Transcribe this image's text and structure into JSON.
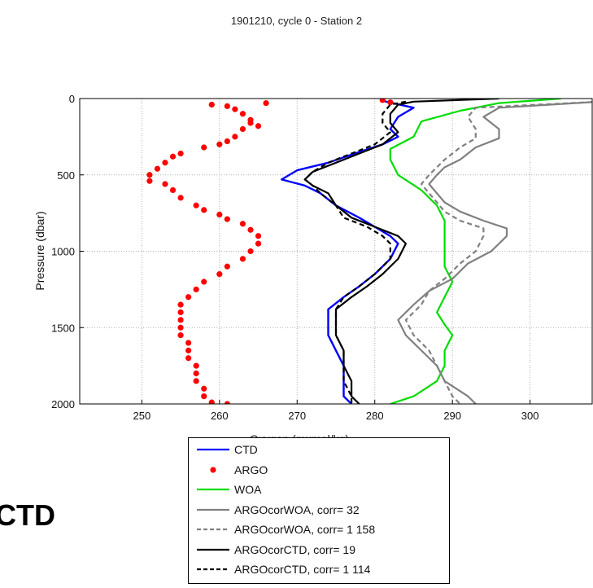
{
  "chart_data": {
    "type": "line",
    "title": "1901210, cycle 0 - Station 2",
    "xlabel": "Oxygen (mumol/kg)",
    "ylabel": "Pressure (dbar)",
    "xlim": [
      242,
      308
    ],
    "ylim": [
      2000,
      0
    ],
    "y_reversed": true,
    "xticks": [
      250,
      260,
      270,
      280,
      290,
      300
    ],
    "yticks": [
      0,
      500,
      1000,
      1500,
      2000
    ],
    "grid": true,
    "legend_position": "below",
    "series": [
      {
        "name": "CTD",
        "color": "#0000ff",
        "style": "solid",
        "points": [
          [
            281,
            15
          ],
          [
            285,
            60
          ],
          [
            283,
            120
          ],
          [
            282,
            200
          ],
          [
            283,
            250
          ],
          [
            281,
            300
          ],
          [
            278,
            350
          ],
          [
            274,
            420
          ],
          [
            270,
            470
          ],
          [
            268,
            530
          ],
          [
            271,
            570
          ],
          [
            273,
            620
          ],
          [
            275,
            700
          ],
          [
            278,
            780
          ],
          [
            280,
            840
          ],
          [
            282,
            900
          ],
          [
            283,
            950
          ],
          [
            282,
            1050
          ],
          [
            280,
            1150
          ],
          [
            278,
            1230
          ],
          [
            276,
            1300
          ],
          [
            274,
            1380
          ],
          [
            274,
            1450
          ],
          [
            274,
            1550
          ],
          [
            275,
            1650
          ],
          [
            276,
            1750
          ],
          [
            276,
            1850
          ],
          [
            276,
            1950
          ],
          [
            277,
            2000
          ]
        ]
      },
      {
        "name": "ARGO",
        "color": "#ff0000",
        "style": "dots",
        "points": [
          [
            266,
            30
          ],
          [
            259,
            40
          ],
          [
            261,
            50
          ],
          [
            262,
            70
          ],
          [
            263,
            100
          ],
          [
            264,
            140
          ],
          [
            264,
            160
          ],
          [
            265,
            180
          ],
          [
            263,
            200
          ],
          [
            262,
            250
          ],
          [
            261,
            280
          ],
          [
            260,
            300
          ],
          [
            258,
            320
          ],
          [
            255,
            360
          ],
          [
            254,
            380
          ],
          [
            253,
            420
          ],
          [
            252,
            460
          ],
          [
            251,
            500
          ],
          [
            251,
            540
          ],
          [
            253,
            560
          ],
          [
            254,
            600
          ],
          [
            255,
            650
          ],
          [
            257,
            700
          ],
          [
            258,
            730
          ],
          [
            260,
            760
          ],
          [
            261,
            790
          ],
          [
            263,
            820
          ],
          [
            264,
            860
          ],
          [
            265,
            900
          ],
          [
            265,
            950
          ],
          [
            264,
            1000
          ],
          [
            263,
            1050
          ],
          [
            261,
            1100
          ],
          [
            260,
            1150
          ],
          [
            258,
            1200
          ],
          [
            257,
            1250
          ],
          [
            256,
            1300
          ],
          [
            255,
            1350
          ],
          [
            255,
            1400
          ],
          [
            255,
            1450
          ],
          [
            255,
            1500
          ],
          [
            255,
            1550
          ],
          [
            256,
            1600
          ],
          [
            256,
            1650
          ],
          [
            256,
            1700
          ],
          [
            257,
            1750
          ],
          [
            257,
            1800
          ],
          [
            257,
            1850
          ],
          [
            258,
            1900
          ],
          [
            258,
            1950
          ],
          [
            259,
            1990
          ],
          [
            261,
            2000
          ],
          [
            281,
            10
          ],
          [
            282,
            25
          ]
        ]
      },
      {
        "name": "WOA",
        "color": "#00dd00",
        "style": "solid",
        "points": [
          [
            304,
            0
          ],
          [
            296,
            30
          ],
          [
            291,
            80
          ],
          [
            286,
            150
          ],
          [
            285,
            250
          ],
          [
            282,
            330
          ],
          [
            282,
            400
          ],
          [
            283,
            500
          ],
          [
            286,
            600
          ],
          [
            288,
            700
          ],
          [
            289,
            800
          ],
          [
            289,
            900
          ],
          [
            289,
            1000
          ],
          [
            289,
            1100
          ],
          [
            290,
            1200
          ],
          [
            289,
            1300
          ],
          [
            288,
            1400
          ],
          [
            289,
            1480
          ],
          [
            290,
            1550
          ],
          [
            289,
            1650
          ],
          [
            289,
            1750
          ],
          [
            288,
            1850
          ],
          [
            285,
            1950
          ],
          [
            282,
            2000
          ]
        ]
      },
      {
        "name": "ARGOcorWOA, corr= 32",
        "color": "#808080",
        "style": "solid",
        "points": [
          [
            309,
            20
          ],
          [
            296,
            60
          ],
          [
            294,
            120
          ],
          [
            296,
            200
          ],
          [
            296,
            260
          ],
          [
            293,
            320
          ],
          [
            291,
            400
          ],
          [
            289,
            450
          ],
          [
            288,
            500
          ],
          [
            287,
            560
          ],
          [
            288,
            620
          ],
          [
            289,
            680
          ],
          [
            291,
            740
          ],
          [
            294,
            800
          ],
          [
            297,
            850
          ],
          [
            297,
            900
          ],
          [
            295,
            1000
          ],
          [
            292,
            1080
          ],
          [
            290,
            1180
          ],
          [
            287,
            1260
          ],
          [
            285,
            1350
          ],
          [
            283,
            1450
          ],
          [
            284,
            1550
          ],
          [
            286,
            1650
          ],
          [
            288,
            1750
          ],
          [
            289,
            1850
          ],
          [
            292,
            1950
          ],
          [
            293,
            2000
          ]
        ]
      },
      {
        "name": "ARGOcorWOA, corr= 1  158",
        "color": "#808080",
        "style": "dashed",
        "points": [
          [
            309,
            20
          ],
          [
            293,
            60
          ],
          [
            292,
            120
          ],
          [
            293,
            200
          ],
          [
            293,
            260
          ],
          [
            291,
            320
          ],
          [
            289,
            400
          ],
          [
            288,
            450
          ],
          [
            287,
            500
          ],
          [
            286,
            560
          ],
          [
            287,
            620
          ],
          [
            288,
            680
          ],
          [
            289,
            740
          ],
          [
            291,
            800
          ],
          [
            294,
            850
          ],
          [
            294,
            900
          ],
          [
            293,
            1000
          ],
          [
            291,
            1080
          ],
          [
            289,
            1180
          ],
          [
            287,
            1260
          ],
          [
            286,
            1350
          ],
          [
            284,
            1450
          ],
          [
            285,
            1550
          ],
          [
            287,
            1650
          ],
          [
            288,
            1750
          ],
          [
            289,
            1850
          ],
          [
            290,
            1950
          ],
          [
            291,
            2000
          ]
        ]
      },
      {
        "name": "ARGOcorCTD, corr= 19",
        "color": "#000000",
        "style": "solid",
        "points": [
          [
            296,
            0
          ],
          [
            285,
            20
          ],
          [
            283,
            40
          ],
          [
            282,
            100
          ],
          [
            282,
            160
          ],
          [
            283,
            220
          ],
          [
            281,
            300
          ],
          [
            278,
            360
          ],
          [
            275,
            420
          ],
          [
            272,
            480
          ],
          [
            271,
            530
          ],
          [
            272,
            570
          ],
          [
            274,
            620
          ],
          [
            275,
            700
          ],
          [
            277,
            780
          ],
          [
            280,
            840
          ],
          [
            283,
            900
          ],
          [
            284,
            950
          ],
          [
            283,
            1050
          ],
          [
            281,
            1150
          ],
          [
            279,
            1230
          ],
          [
            277,
            1300
          ],
          [
            275,
            1380
          ],
          [
            275,
            1450
          ],
          [
            275,
            1550
          ],
          [
            276,
            1650
          ],
          [
            276,
            1750
          ],
          [
            277,
            1850
          ],
          [
            277,
            1950
          ],
          [
            278,
            2000
          ]
        ]
      },
      {
        "name": "ARGOcorCTD, corr= 1  114",
        "color": "#000000",
        "style": "dashed",
        "points": [
          [
            284,
            20
          ],
          [
            282,
            40
          ],
          [
            281,
            100
          ],
          [
            281,
            160
          ],
          [
            282,
            220
          ],
          [
            280,
            300
          ],
          [
            277,
            360
          ],
          [
            274,
            420
          ],
          [
            272,
            480
          ],
          [
            271,
            530
          ],
          [
            272,
            570
          ],
          [
            273,
            620
          ],
          [
            275,
            700
          ],
          [
            276,
            780
          ],
          [
            279,
            840
          ],
          [
            281,
            900
          ],
          [
            282,
            950
          ],
          [
            282,
            1050
          ],
          [
            280,
            1150
          ],
          [
            278,
            1230
          ],
          [
            276,
            1300
          ],
          [
            275,
            1380
          ],
          [
            275,
            1450
          ],
          [
            275,
            1550
          ],
          [
            276,
            1650
          ],
          [
            276,
            1750
          ],
          [
            276,
            1850
          ],
          [
            277,
            1950
          ],
          [
            277,
            2000
          ]
        ]
      }
    ]
  },
  "side_label": "CTD"
}
